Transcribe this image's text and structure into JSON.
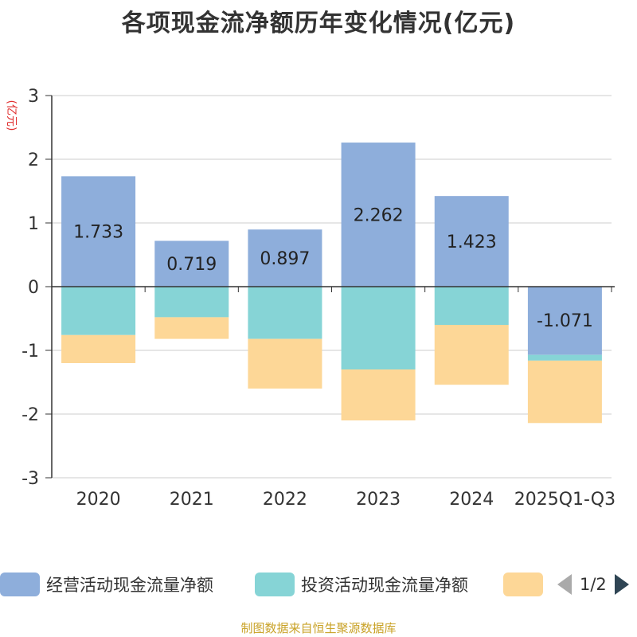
{
  "title": "各项现金流净额历年变化情况(亿元)",
  "source": "制图数据来自恒生聚源数据库",
  "legend_page": "1/2",
  "chart_data": {
    "type": "bar",
    "stacked": true,
    "title": "各项现金流净额历年变化情况(亿元)",
    "ylabel": "(亿元)",
    "ylim": [
      -3,
      3
    ],
    "yticks": [
      -3,
      -2,
      -1,
      0,
      1,
      2,
      3
    ],
    "grid": true,
    "legend_position": "bottom",
    "categories": [
      "2020",
      "2021",
      "2022",
      "2023",
      "2024",
      "2025Q1-Q3"
    ],
    "series": [
      {
        "name": "经营活动现金流量净额",
        "color": "#8eaedb",
        "values": [
          1.733,
          0.719,
          0.897,
          2.262,
          1.423,
          -1.071
        ],
        "labels": [
          "1.733",
          "0.719",
          "0.897",
          "2.262",
          "1.423",
          "-1.071"
        ]
      },
      {
        "name": "投资活动现金流量净额",
        "color": "#86d4d6",
        "values": [
          -0.76,
          -0.48,
          -0.82,
          -1.3,
          -0.6,
          -0.09
        ]
      },
      {
        "name": "",
        "color": "#fdd797",
        "values": [
          -0.44,
          -0.34,
          -0.78,
          -0.8,
          -0.94,
          -0.98
        ]
      }
    ]
  }
}
